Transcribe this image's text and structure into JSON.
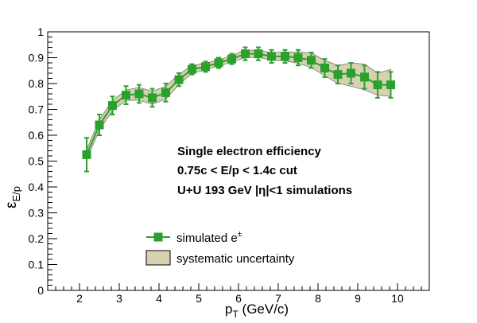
{
  "chart_data": {
    "type": "scatter",
    "title": "",
    "xlabel_main": "p",
    "xlabel_sub": "T",
    "xlabel_unit": " (GeV/c)",
    "ylabel_main": "ε",
    "ylabel_sub": "E/p",
    "xlim": [
      1.2,
      10.8
    ],
    "ylim": [
      0,
      1
    ],
    "x_ticks": [
      2,
      3,
      4,
      5,
      6,
      7,
      8,
      9,
      10
    ],
    "x_tick_labels": [
      "2",
      "3",
      "4",
      "5",
      "6",
      "7",
      "8",
      "9",
      "10"
    ],
    "y_ticks": [
      0,
      0.1,
      0.2,
      0.3,
      0.4,
      0.5,
      0.6,
      0.7,
      0.8,
      0.9,
      1
    ],
    "y_tick_labels": [
      "0",
      "0.1",
      "0.2",
      "0.3",
      "0.4",
      "0.5",
      "0.6",
      "0.7",
      "0.8",
      "0.9",
      "1"
    ],
    "annotations": [
      "Single electron efficiency",
      "0.75c < E/p < 1.4c cut",
      "U+U 193 GeV |η|<1 simulations"
    ],
    "legend": {
      "placement": "lower-left",
      "entries": [
        {
          "label_main": "simulated e",
          "label_sup": "±",
          "kind": "marker"
        },
        {
          "label_main": "systematic uncertainty",
          "kind": "band"
        }
      ]
    },
    "colors": {
      "series": "#2ca02c",
      "band_fill": "#d6d1b1",
      "band_edge": "#555555",
      "axis": "#000000"
    },
    "series": [
      {
        "x": [
          2.18,
          2.5,
          2.83,
          3.17,
          3.5,
          3.83,
          4.17,
          4.5,
          4.83,
          5.17,
          5.5,
          5.83,
          6.17,
          6.5,
          6.83,
          7.17,
          7.5,
          7.83,
          8.17,
          8.5,
          8.83,
          9.17,
          9.5,
          9.83
        ],
        "y": [
          0.525,
          0.64,
          0.715,
          0.755,
          0.76,
          0.745,
          0.765,
          0.815,
          0.855,
          0.865,
          0.88,
          0.895,
          0.915,
          0.915,
          0.905,
          0.905,
          0.9,
          0.89,
          0.86,
          0.835,
          0.84,
          0.825,
          0.795,
          0.795
        ],
        "yerr": [
          0.065,
          0.04,
          0.035,
          0.035,
          0.035,
          0.035,
          0.035,
          0.025,
          0.02,
          0.02,
          0.02,
          0.02,
          0.025,
          0.025,
          0.025,
          0.025,
          0.03,
          0.03,
          0.035,
          0.035,
          0.04,
          0.045,
          0.05,
          0.05
        ],
        "band_low": [
          0.505,
          0.62,
          0.695,
          0.735,
          0.735,
          0.72,
          0.74,
          0.795,
          0.84,
          0.852,
          0.868,
          0.882,
          0.9,
          0.902,
          0.89,
          0.888,
          0.878,
          0.862,
          0.83,
          0.8,
          0.79,
          0.775,
          0.755,
          0.75
        ],
        "band_high": [
          0.545,
          0.66,
          0.735,
          0.775,
          0.785,
          0.77,
          0.79,
          0.835,
          0.87,
          0.878,
          0.892,
          0.908,
          0.93,
          0.928,
          0.92,
          0.922,
          0.922,
          0.918,
          0.89,
          0.87,
          0.88,
          0.875,
          0.84,
          0.855
        ]
      }
    ]
  }
}
